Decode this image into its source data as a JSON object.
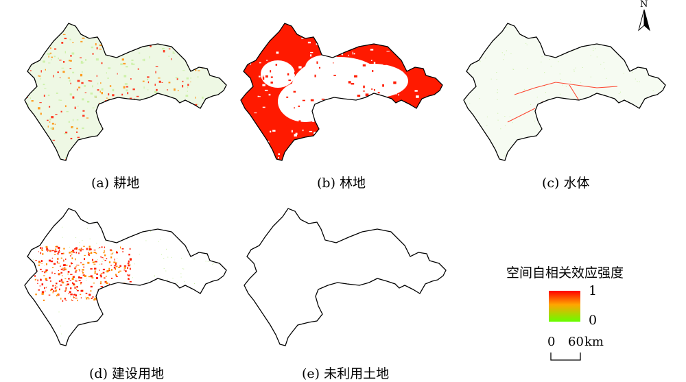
{
  "panels": [
    {
      "id": "a",
      "caption": "(a) 耕地",
      "land_type": "耕地",
      "fill": "mixed-light"
    },
    {
      "id": "b",
      "caption": "(b) 林地",
      "land_type": "林地",
      "fill": "dense-red"
    },
    {
      "id": "c",
      "caption": "(c) 水体",
      "land_type": "水体",
      "fill": "sparse-lines"
    },
    {
      "id": "d",
      "caption": "(d) 建设用地",
      "land_type": "建设用地",
      "fill": "urban-core"
    },
    {
      "id": "e",
      "caption": "(e) 未利用土地",
      "land_type": "未利用土地",
      "fill": "empty"
    }
  ],
  "legend": {
    "title": "空间自相关效应强度",
    "max_label": "1",
    "min_label": "0",
    "colors": {
      "high": "#ff0000",
      "mid": "#ffa500",
      "low": "#66ff00"
    }
  },
  "north_arrow": {
    "letter": "N"
  },
  "scale_bar": {
    "labels": [
      "0",
      "60"
    ],
    "unit": "km"
  },
  "colors": {
    "outline": "#000000",
    "hot": "#ff1a00",
    "warm": "#ff8c00",
    "cool": "#c8f0a0",
    "pale": "#eef8e4"
  }
}
